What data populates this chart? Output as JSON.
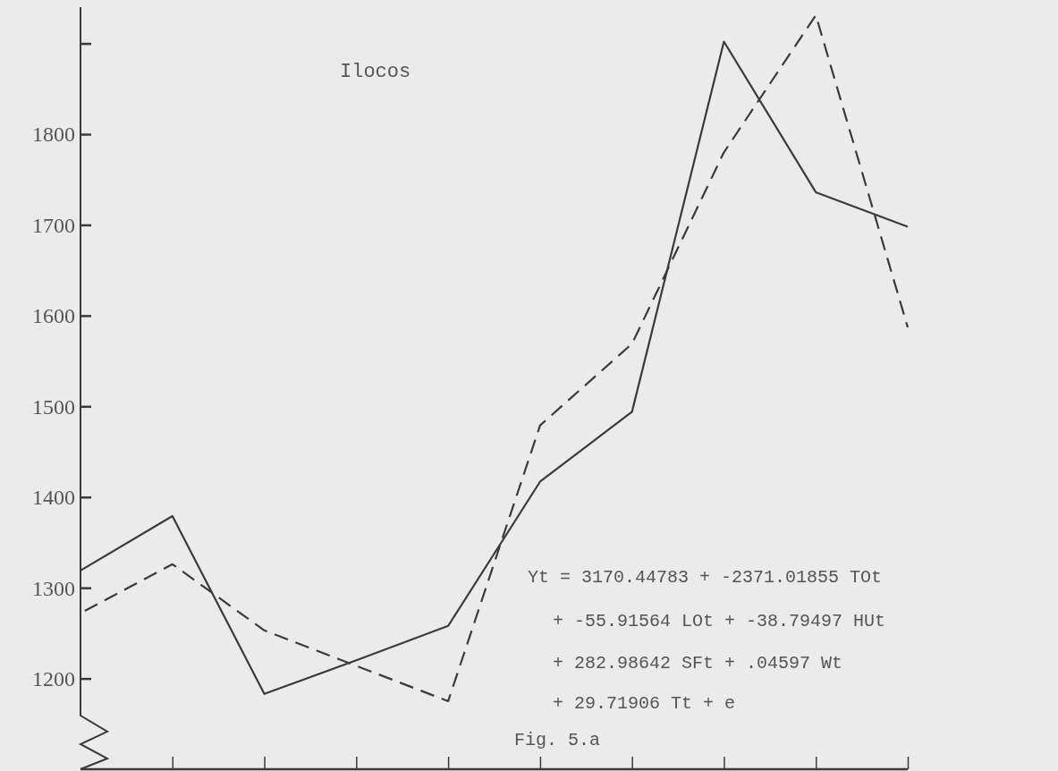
{
  "chart_data": {
    "type": "line",
    "title": "Ilocos",
    "categories": [
      null,
      null,
      null,
      null,
      null,
      null,
      null,
      null,
      null,
      null
    ],
    "series": [
      {
        "color": "#3a3a3a",
        "line_style": "solid",
        "values": [
          1319,
          1379,
          1183,
          1220,
          1258,
          1417,
          1494,
          1902,
          1736,
          1698
        ]
      },
      {
        "color": "#3a3a3a",
        "line_style": "dashed",
        "values": [
          1272,
          1326,
          1253,
          1214,
          1175,
          1479,
          1569,
          1780,
          1931,
          1587
        ]
      }
    ],
    "ylim": [
      1100,
      1940
    ],
    "yticks": [
      1200,
      1300,
      1400,
      1500,
      1600,
      1700,
      1800,
      {
        "value": 1900,
        "label": null
      }
    ],
    "annotations": [
      "Yt = 3170.44783 + -2371.01855 TOt",
      "+ -55.91564 LOt + -38.79497 HUt",
      "+ 282.98642 SFt + .04597 Wt",
      "+ 29.71906 Tt + e",
      "Fig. 5.a"
    ],
    "grid": false,
    "marker": "none"
  }
}
